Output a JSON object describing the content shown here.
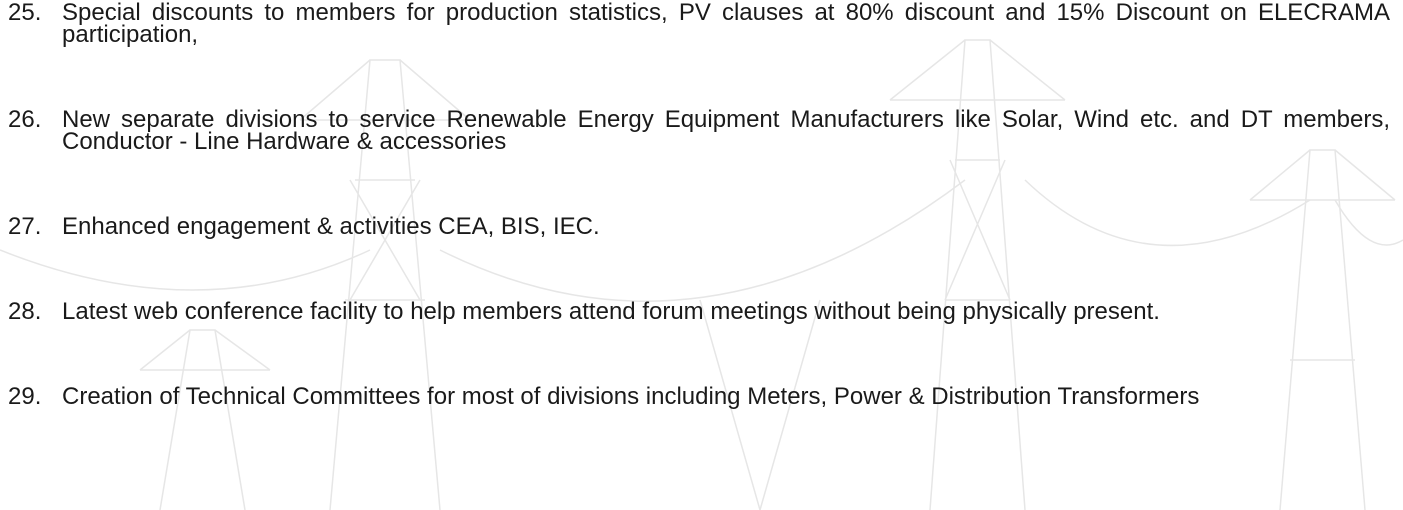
{
  "list": {
    "items": [
      {
        "number": "25.",
        "text": "Special discounts to members for production statistics, PV clauses at 80% discount and 15% Discount on ELECRAMA participation,"
      },
      {
        "number": "26.",
        "text": "New separate divisions to service Renewable Energy Equipment Manufacturers like Solar, Wind etc. and DT members, Conductor - Line Hardware & accessories"
      },
      {
        "number": "27.",
        "text": "Enhanced engagement & activities CEA, BIS, IEC."
      },
      {
        "number": "28.",
        "text": "Latest web conference facility to help members attend forum meetings without being physically present."
      },
      {
        "number": "29.",
        "text": "Creation of Technical Committees for most of divisions including Meters, Power & Distribution Transformers"
      }
    ]
  }
}
